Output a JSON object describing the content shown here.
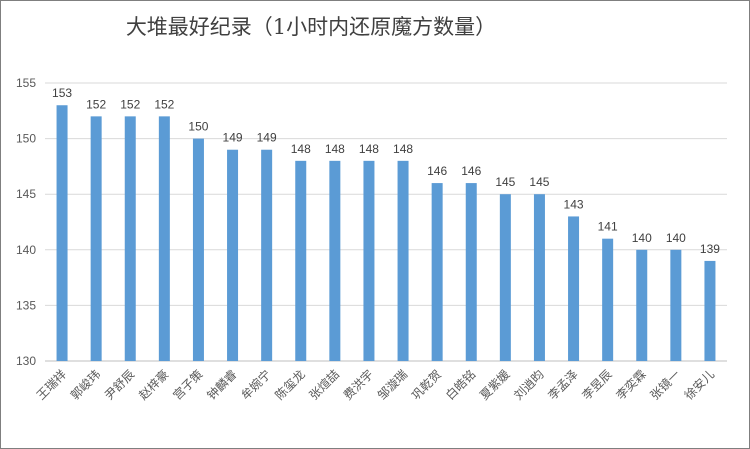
{
  "chart_data": {
    "type": "bar",
    "title": "大堆最好纪录（1小时内还原魔方数量）",
    "xlabel": "",
    "ylabel": "",
    "ylim": [
      130,
      155
    ],
    "yticks": [
      130,
      135,
      140,
      145,
      150,
      155
    ],
    "grid": true,
    "bar_color": "#5B9BD5",
    "categories": [
      "王瑞祥",
      "郭峻玮",
      "尹舒辰",
      "赵梓豪",
      "宫子策",
      "钟麟睿",
      "牟婉宁",
      "陈玺龙",
      "张煊喆",
      "费洪宇",
      "邹漩瑞",
      "巩乾贺",
      "白皓铭",
      "夏紫媛",
      "刘逍昀",
      "李孟泽",
      "李昱辰",
      "李奕霖",
      "张镜一",
      "徐安儿"
    ],
    "values": [
      153,
      152,
      152,
      152,
      150,
      149,
      149,
      148,
      148,
      148,
      148,
      146,
      146,
      145,
      145,
      143,
      141,
      140,
      140,
      139
    ]
  }
}
